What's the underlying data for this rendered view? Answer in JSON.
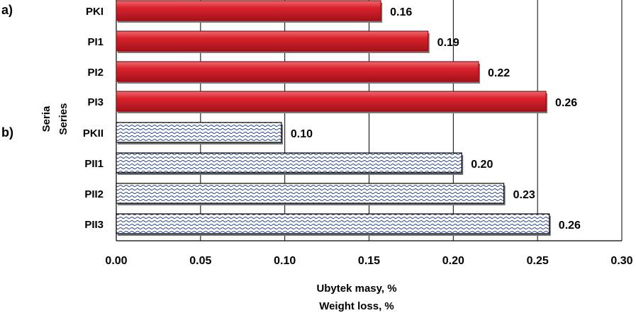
{
  "chart_data": {
    "type": "bar",
    "orientation": "horizontal",
    "panel_labels": [
      "a)",
      "b)"
    ],
    "ylabel": [
      "Seria",
      "Series"
    ],
    "xlabel": [
      "Ubytek masy, %",
      "Weight loss, %"
    ],
    "xlim": [
      0,
      0.3
    ],
    "xticks": [
      "0.00",
      "0.05",
      "0.10",
      "0.15",
      "0.20",
      "0.25",
      "0.30"
    ],
    "grid": "vertical",
    "groups": [
      {
        "label": "a)",
        "style": "solid",
        "color": "#d9232d",
        "categories": [
          "PKI",
          "PI1",
          "PI2",
          "PI3"
        ],
        "values": [
          0.157,
          0.185,
          0.215,
          0.255
        ],
        "data_labels": [
          "0.16",
          "0.19",
          "0.22",
          "0.26"
        ]
      },
      {
        "label": "b)",
        "style": "wave-pattern",
        "color": "#1f3f8a",
        "categories": [
          "PKII",
          "PII1",
          "PII2",
          "PII3"
        ],
        "values": [
          0.098,
          0.205,
          0.23,
          0.257
        ],
        "data_labels": [
          "0.10",
          "0.20",
          "0.23",
          "0.26"
        ]
      }
    ]
  }
}
